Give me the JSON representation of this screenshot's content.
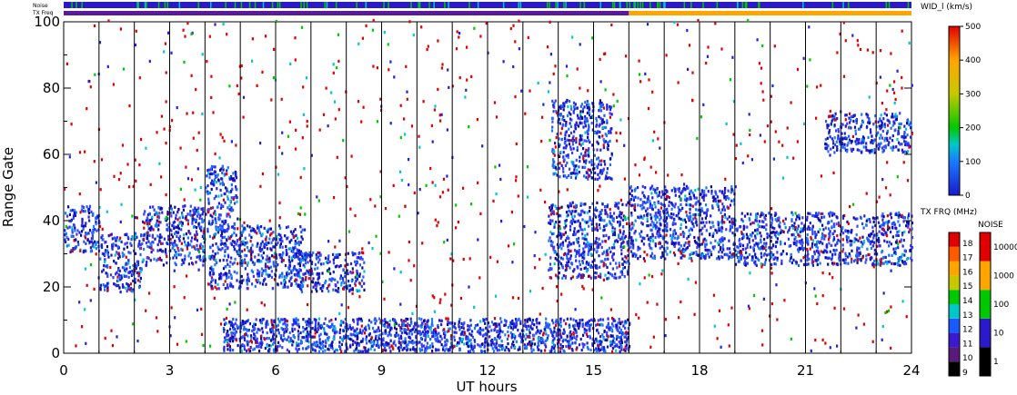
{
  "chart_data": {
    "type": "heatmap",
    "xlabel": "UT hours",
    "ylabel": "Range Gate",
    "xlim": [
      0,
      24
    ],
    "ylim": [
      0,
      100
    ],
    "x_ticks": [
      "0",
      "3",
      "6",
      "9",
      "12",
      "15",
      "18",
      "21",
      "24"
    ],
    "y_ticks": [
      "0",
      "20",
      "40",
      "60",
      "80",
      "100"
    ],
    "scan_boundaries_ut": [
      1,
      2,
      3,
      4,
      5,
      6,
      7,
      8,
      9,
      10,
      11,
      12,
      13,
      14,
      15,
      16,
      17,
      18,
      19,
      20,
      21,
      22,
      23
    ],
    "strips": {
      "noise_label": "Noise",
      "txfreq_label": "TX Freq",
      "noise_color": "#2a1acc",
      "txfreq_segments": [
        {
          "from": 0,
          "to": 16,
          "color": "#5a1a9a"
        },
        {
          "from": 16,
          "to": 24,
          "color": "#ffa500"
        }
      ]
    },
    "scatter_regions": [
      {
        "desc": "band",
        "x0": 0,
        "x1": 1.0,
        "y0": 30,
        "y1": 44
      },
      {
        "desc": "band",
        "x0": 1.0,
        "x1": 2.2,
        "y0": 18,
        "y1": 36
      },
      {
        "desc": "band",
        "x0": 2.2,
        "x1": 4.0,
        "y0": 26,
        "y1": 44
      },
      {
        "desc": "band",
        "x0": 4.0,
        "x1": 4.9,
        "y0": 36,
        "y1": 56
      },
      {
        "desc": "band",
        "x0": 4.1,
        "x1": 6.8,
        "y0": 19,
        "y1": 38
      },
      {
        "desc": "band",
        "x0": 6.5,
        "x1": 8.5,
        "y0": 18,
        "y1": 30
      },
      {
        "desc": "band",
        "x0": 13.7,
        "x1": 16.0,
        "y0": 22,
        "y1": 45
      },
      {
        "desc": "band",
        "x0": 13.8,
        "x1": 15.5,
        "y0": 52,
        "y1": 76
      },
      {
        "desc": "band",
        "x0": 16.0,
        "x1": 19.0,
        "y0": 28,
        "y1": 50
      },
      {
        "desc": "band",
        "x0": 19.0,
        "x1": 24.0,
        "y0": 26,
        "y1": 42
      },
      {
        "desc": "band",
        "x0": 21.5,
        "x1": 24.0,
        "y0": 60,
        "y1": 72
      },
      {
        "desc": "near-range",
        "x0": 4.5,
        "x1": 16.0,
        "y0": 0,
        "y1": 10
      }
    ],
    "colorbars": [
      {
        "title": "WID_l (km/s)",
        "ticks": [
          "0",
          "100",
          "200",
          "300",
          "400",
          "500"
        ]
      },
      {
        "title": "TX FRQ (MHz)",
        "ticks": [
          "9",
          "10",
          "11",
          "12",
          "13",
          "14",
          "15",
          "16",
          "17",
          "18"
        ],
        "colors": [
          "#000000",
          "#5a1a7a",
          "#3a1acc",
          "#1a5aff",
          "#00c8c8",
          "#00c800",
          "#c8c800",
          "#ffa500",
          "#ff5a00",
          "#e00000"
        ]
      },
      {
        "title": "NOISE",
        "ticks": [
          "1",
          "10",
          "100",
          "1000",
          "10000"
        ],
        "colors": [
          "#000000",
          "#2a1acc",
          "#00c800",
          "#ffa500",
          "#e00000"
        ]
      }
    ]
  }
}
